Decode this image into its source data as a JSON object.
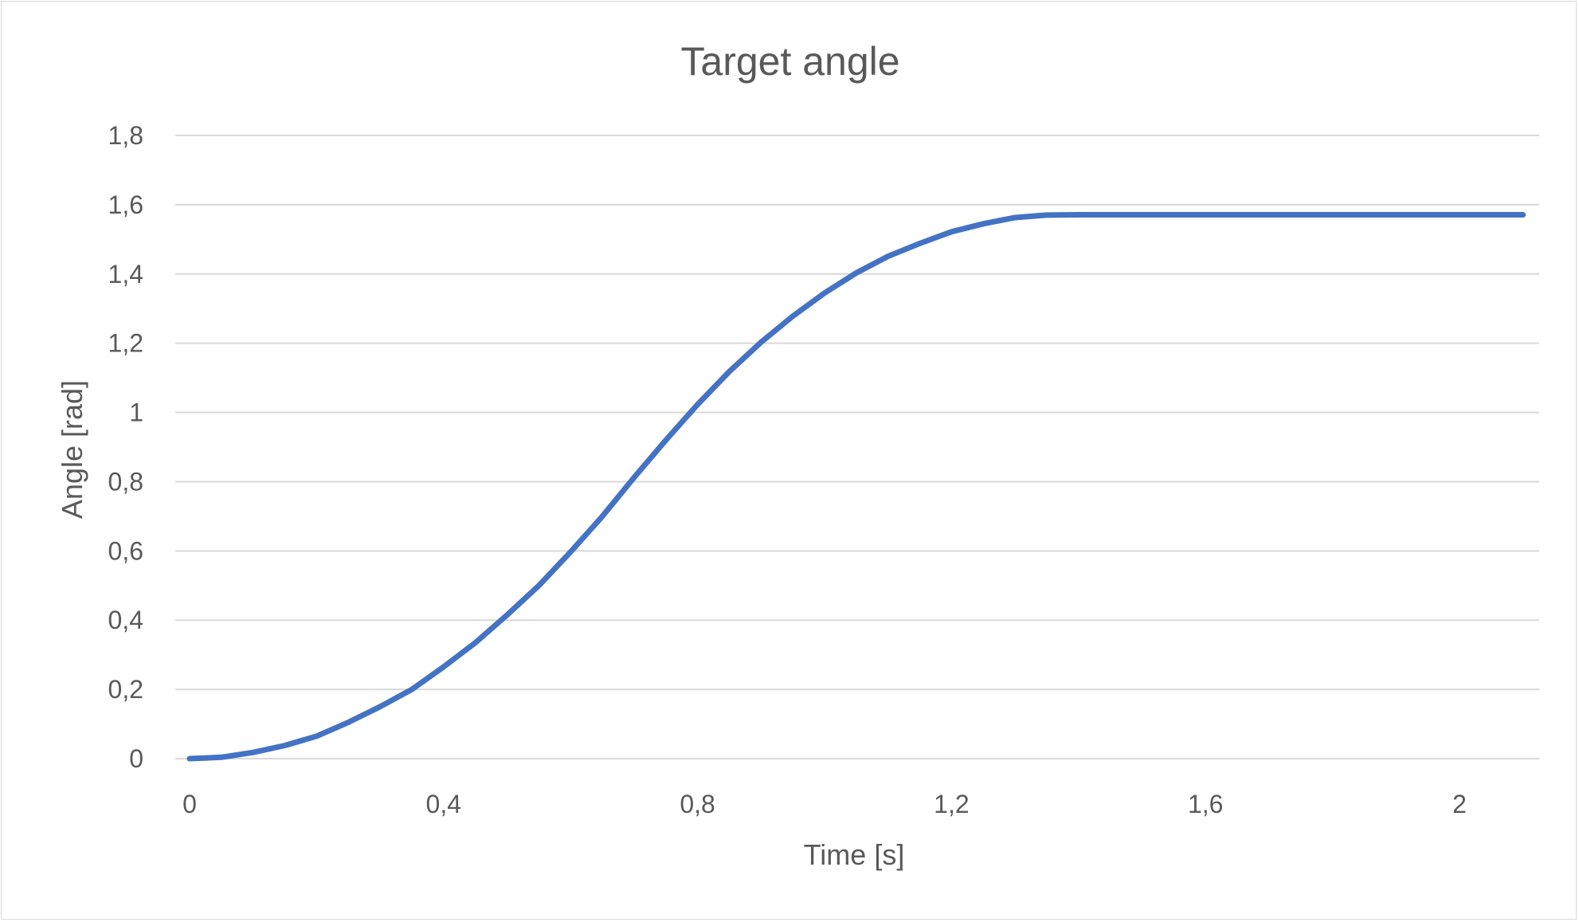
{
  "chart_data": {
    "type": "line",
    "title": "Target angle",
    "xlabel": "Time [s]",
    "ylabel": "Angle [rad]",
    "xlim": [
      0,
      2.1
    ],
    "ylim": [
      0,
      1.8
    ],
    "x_ticks": [
      "0",
      "0,4",
      "0,8",
      "1,2",
      "1,6",
      "2"
    ],
    "x_tick_values": [
      0,
      0.4,
      0.8,
      1.2,
      1.6,
      2.0
    ],
    "y_ticks": [
      "0",
      "0,2",
      "0,4",
      "0,6",
      "0,8",
      "1",
      "1,2",
      "1,4",
      "1,6",
      "1,8"
    ],
    "y_tick_values": [
      0,
      0.2,
      0.4,
      0.6,
      0.8,
      1.0,
      1.2,
      1.4,
      1.6,
      1.8
    ],
    "grid": true,
    "legend": "none",
    "series": [
      {
        "color": "#4472c4",
        "x": [
          0,
          0.05,
          0.1,
          0.15,
          0.2,
          0.25,
          0.3,
          0.35,
          0.4,
          0.45,
          0.5,
          0.55,
          0.6,
          0.65,
          0.7,
          0.75,
          0.8,
          0.85,
          0.9,
          0.95,
          1.0,
          1.05,
          1.1,
          1.15,
          1.2,
          1.25,
          1.3,
          1.35,
          1.4,
          1.5,
          1.6,
          1.7,
          1.8,
          1.9,
          2.0,
          2.1
        ],
        "y": [
          0,
          0.004,
          0.018,
          0.038,
          0.065,
          0.105,
          0.15,
          0.2,
          0.265,
          0.335,
          0.415,
          0.5,
          0.597,
          0.7,
          0.812,
          0.92,
          1.023,
          1.118,
          1.203,
          1.278,
          1.345,
          1.403,
          1.451,
          1.488,
          1.522,
          1.545,
          1.563,
          1.57,
          1.571,
          1.571,
          1.571,
          1.571,
          1.571,
          1.571,
          1.571,
          1.571
        ]
      }
    ]
  }
}
